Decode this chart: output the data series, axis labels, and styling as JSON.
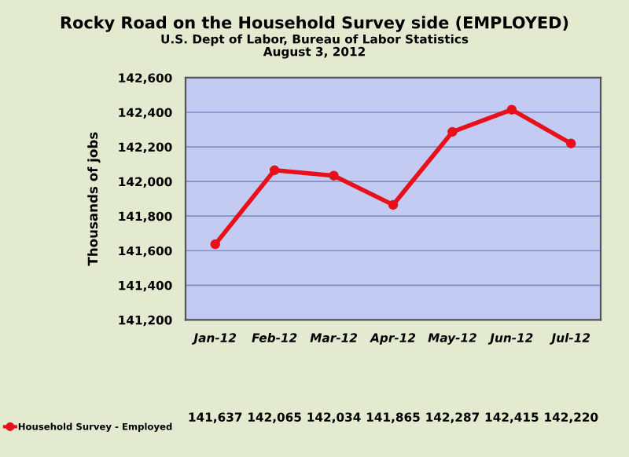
{
  "chart_data": {
    "type": "line",
    "title": "Rocky Road on the Household Survey side (EMPLOYED)",
    "subtitle": "U.S. Dept of Labor, Bureau of Labor Statistics\nAugust 3, 2012",
    "ylabel": "Thousands of jobs",
    "categories": [
      "Jan-12",
      "Feb-12",
      "Mar-12",
      "Apr-12",
      "May-12",
      "Jun-12",
      "Jul-12"
    ],
    "series": [
      {
        "name": "Household Survey - Employed",
        "color": "#e8101a",
        "values": [
          141637,
          142065,
          142034,
          141865,
          142287,
          142415,
          142220
        ],
        "value_labels": [
          "141,637",
          "142,065",
          "142,034",
          "141,865",
          "142,287",
          "142,415",
          "142,220"
        ]
      }
    ],
    "ylim": [
      141200,
      142600
    ],
    "yticks": [
      {
        "value": 141200,
        "label": "141,200"
      },
      {
        "value": 141400,
        "label": "141,400"
      },
      {
        "value": 141600,
        "label": "141,600"
      },
      {
        "value": 141800,
        "label": "141,800"
      },
      {
        "value": 142000,
        "label": "142,000"
      },
      {
        "value": 142200,
        "label": "142,200"
      },
      {
        "value": 142400,
        "label": "142,400"
      },
      {
        "value": 142600,
        "label": "142,600"
      }
    ],
    "grid": "y",
    "legend": "bottom",
    "marker": "circle",
    "line_style": "solid"
  }
}
